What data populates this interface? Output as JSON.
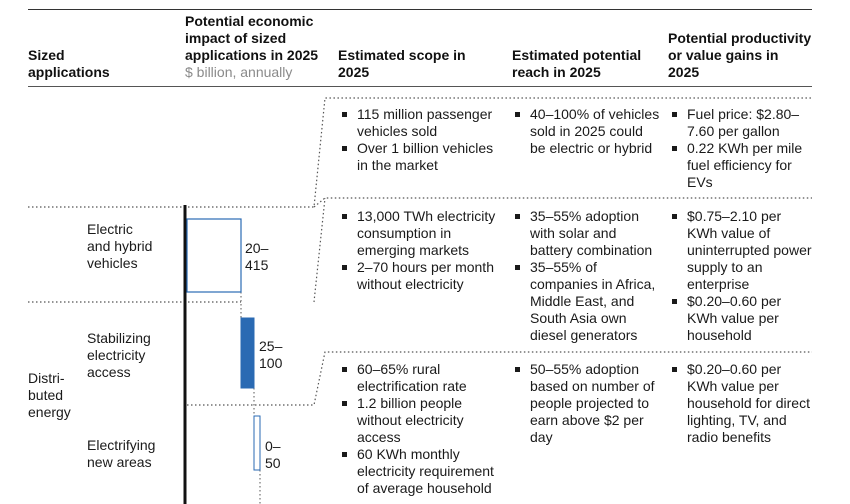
{
  "headers": {
    "col1": "Sized applications",
    "col2_title": "Potential economic impact of sized applications in 2025",
    "col2_sub": "$ billion, annually",
    "col3": "Estimated scope in 2025",
    "col4": "Estimated potential reach in 2025",
    "col5": "Potential productivity or value gains in 2025"
  },
  "group_label": "Distri-buted energy",
  "rows": [
    {
      "scope": [
        "115 million passenger vehicles sold",
        "Over 1 billion vehicles in the market"
      ],
      "reach": [
        "40–100% of vehicles sold in 2025 could be electric or hybrid"
      ],
      "gains": [
        "Fuel price: $2.80–7.60 per gallon",
        "0.22 KWh per mile fuel efficiency for EVs"
      ]
    },
    {
      "scope": [
        "13,000 TWh electricity consumption in emerging markets",
        "2–70 hours per month without electricity"
      ],
      "reach": [
        "35–55% adoption with solar and battery combination",
        "35–55% of companies in Africa, Middle East, and South Asia own diesel generators"
      ],
      "gains": [
        "$0.75–2.10 per KWh value of uninterrupted power supply to an enterprise",
        "$0.20–0.60 per KWh value per household"
      ]
    },
    {
      "scope": [
        "60–65% rural electrification rate",
        "1.2 billion people without electricity access",
        "60 KWh monthly electricity requirement of average household"
      ],
      "reach": [
        "50–55% adoption based on number of people projected to earn above $2 per day"
      ],
      "gains": [
        "$0.20–0.60 per KWh value per household for direct lighting, TV, and radio benefits"
      ]
    }
  ],
  "applications": [
    {
      "name": "Electric and hybrid vehicles",
      "impact": "20–415",
      "range_low": 20,
      "range_high": 415
    },
    {
      "name": "Stabilizing electricity access",
      "impact": "25–100",
      "range_low": 25,
      "range_high": 100
    },
    {
      "name": "Electrifying new areas",
      "impact": "0–50",
      "range_low": 0,
      "range_high": 50
    }
  ],
  "colors": {
    "accent": "#2a6ab3",
    "rule": "#555555"
  }
}
